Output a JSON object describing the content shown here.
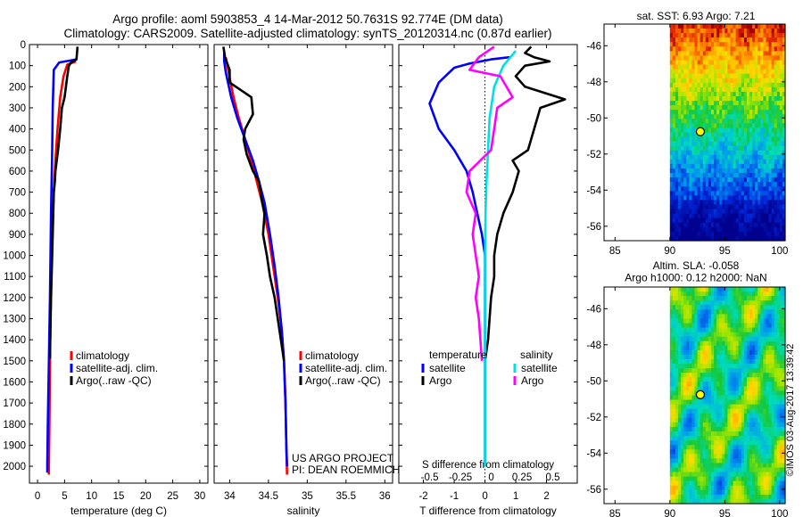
{
  "title": {
    "line1": "Argo profile: aoml 5903853_4 14-Mar-2012 50.7631S 92.774E (DM data)",
    "line2": "Climatology: CARS2009. Satellite-adjusted climatology: synTS_20120314.nc (0.87d earlier)"
  },
  "colors": {
    "climatology": "#ff0000",
    "satellite": "#0000ff",
    "argo": "#000000",
    "argo_salinity": "#ff00ff",
    "satellite_salinity": "#00e0e0"
  },
  "chart_data": [
    {
      "type": "line",
      "name": "temperature",
      "xlabel": "temperature (deg C)",
      "xlim": [
        -1.5,
        31.5
      ],
      "ylim": [
        2080,
        0
      ],
      "x_ticks": [
        0,
        5,
        10,
        15,
        20,
        25,
        30
      ],
      "y_ticks": [
        0,
        100,
        200,
        300,
        400,
        500,
        600,
        700,
        800,
        900,
        1000,
        1100,
        1200,
        1300,
        1400,
        1500,
        1600,
        1700,
        1800,
        1900,
        2000
      ],
      "legend": [
        "climatology",
        "satellite-adj. clim.",
        "Argo(..raw -QC)"
      ],
      "series": [
        {
          "name": "climatology",
          "points": [
            [
              7.1,
              80
            ],
            [
              5.5,
              95
            ],
            [
              4.8,
              150
            ],
            [
              4.2,
              250
            ],
            [
              3.7,
              400
            ],
            [
              3.3,
              550
            ],
            [
              3.0,
              700
            ],
            [
              2.8,
              850
            ],
            [
              2.6,
              1000
            ],
            [
              2.45,
              1200
            ],
            [
              2.3,
              1500
            ],
            [
              2.2,
              1800
            ],
            [
              2.1,
              2000
            ],
            [
              2.1,
              2040
            ]
          ]
        },
        {
          "name": "satellite-adj. clim.",
          "points": [
            [
              7.2,
              70
            ],
            [
              4.0,
              85
            ],
            [
              3.0,
              120
            ],
            [
              2.8,
              300
            ],
            [
              2.7,
              500
            ],
            [
              2.5,
              800
            ],
            [
              2.3,
              1200
            ],
            [
              2.1,
              1500
            ],
            [
              1.9,
              1800
            ],
            [
              1.8,
              2000
            ],
            [
              1.8,
              2030
            ]
          ]
        },
        {
          "name": "Argo(..raw -QC)",
          "points": [
            [
              7.4,
              10
            ],
            [
              7.3,
              40
            ],
            [
              7.2,
              70
            ],
            [
              6.2,
              85
            ],
            [
              5.8,
              100
            ],
            [
              5.5,
              150
            ],
            [
              5.0,
              250
            ],
            [
              4.5,
              300
            ],
            [
              4.2,
              400
            ],
            [
              3.8,
              500
            ],
            [
              3.3,
              600
            ],
            [
              3.2,
              650
            ],
            [
              3.0,
              700
            ],
            [
              2.9,
              800
            ],
            [
              2.8,
              900
            ],
            [
              2.7,
              1000
            ],
            [
              2.5,
              1200
            ],
            [
              2.35,
              1400
            ],
            [
              2.3,
              1490
            ]
          ]
        }
      ]
    },
    {
      "type": "line",
      "name": "salinity",
      "xlabel": "salinity",
      "xlim": [
        33.8,
        36.1
      ],
      "ylim": [
        2080,
        0
      ],
      "x_ticks": [
        34,
        34.5,
        35,
        35.5,
        36
      ],
      "x_ticklabels": [
        "34",
        "34.5",
        "35",
        "35.5",
        "36"
      ],
      "legend": [
        "climatology",
        "satellite-adj. clim.",
        "Argo(..raw -QC)"
      ],
      "annotation": [
        "US ARGO PROJECT",
        "PI: DEAN ROEMMICH"
      ],
      "series": [
        {
          "name": "climatology",
          "points": [
            [
              33.95,
              60
            ],
            [
              33.98,
              120
            ],
            [
              34.05,
              250
            ],
            [
              34.12,
              350
            ],
            [
              34.2,
              450
            ],
            [
              34.28,
              550
            ],
            [
              34.35,
              650
            ],
            [
              34.42,
              750
            ],
            [
              34.5,
              900
            ],
            [
              34.56,
              1050
            ],
            [
              34.62,
              1200
            ],
            [
              34.67,
              1350
            ],
            [
              34.7,
              1500
            ],
            [
              34.72,
              1700
            ],
            [
              34.73,
              1900
            ],
            [
              34.74,
              2040
            ]
          ]
        },
        {
          "name": "satellite-adj. clim.",
          "points": [
            [
              33.93,
              40
            ],
            [
              33.93,
              80
            ],
            [
              33.95,
              130
            ],
            [
              34.02,
              250
            ],
            [
              34.1,
              350
            ],
            [
              34.2,
              450
            ],
            [
              34.3,
              550
            ],
            [
              34.38,
              650
            ],
            [
              34.45,
              750
            ],
            [
              34.52,
              900
            ],
            [
              34.58,
              1050
            ],
            [
              34.63,
              1200
            ],
            [
              34.67,
              1350
            ],
            [
              34.7,
              1500
            ],
            [
              34.72,
              1700
            ],
            [
              34.73,
              1900
            ],
            [
              34.74,
              2000
            ]
          ]
        },
        {
          "name": "Argo(..raw -QC)",
          "points": [
            [
              33.92,
              10
            ],
            [
              33.94,
              60
            ],
            [
              34.0,
              120
            ],
            [
              34.0,
              180
            ],
            [
              34.28,
              250
            ],
            [
              34.3,
              330
            ],
            [
              34.2,
              400
            ],
            [
              34.18,
              450
            ],
            [
              34.22,
              520
            ],
            [
              34.3,
              600
            ],
            [
              34.38,
              650
            ],
            [
              34.42,
              750
            ],
            [
              34.45,
              800
            ],
            [
              34.43,
              900
            ],
            [
              34.48,
              1000
            ],
            [
              34.52,
              1100
            ],
            [
              34.58,
              1200
            ],
            [
              34.62,
              1300
            ],
            [
              34.66,
              1400
            ],
            [
              34.7,
              1500
            ]
          ]
        }
      ]
    },
    {
      "type": "line",
      "name": "difference",
      "xlabel": "T difference from climatology",
      "xlabel_top": "S difference from climatology",
      "xlim": [
        -2.8,
        3.0
      ],
      "ylim": [
        2080,
        0
      ],
      "x_ticks": [
        -2,
        -1,
        0,
        1,
        2
      ],
      "x_top_ticklabels": [
        "-0.5",
        "-0.25",
        "0",
        "0.25",
        "0.5"
      ],
      "legend_temperature_heading": "temperature",
      "legend_salinity_heading": "salinity",
      "legend": [
        "satellite",
        "Argo",
        "satellite",
        "Argo"
      ],
      "series": [
        {
          "name": "satellite",
          "points": [
            [
              0.8,
              60
            ],
            [
              0.2,
              70
            ],
            [
              -0.5,
              90
            ],
            [
              -1.0,
              110
            ],
            [
              -1.5,
              180
            ],
            [
              -1.8,
              280
            ],
            [
              -1.5,
              400
            ],
            [
              -1.0,
              500
            ],
            [
              -0.6,
              600
            ],
            [
              -0.4,
              700
            ],
            [
              -0.25,
              800
            ],
            [
              -0.1,
              900
            ],
            [
              0,
              1000
            ],
            [
              0,
              1500
            ],
            [
              0,
              2000
            ]
          ]
        },
        {
          "name": "Argo",
          "points": [
            [
              1.5,
              10
            ],
            [
              1.3,
              40
            ],
            [
              1.6,
              60
            ],
            [
              2.1,
              80
            ],
            [
              1.3,
              100
            ],
            [
              1.0,
              150
            ],
            [
              1.3,
              200
            ],
            [
              2.6,
              260
            ],
            [
              1.8,
              300
            ],
            [
              1.6,
              400
            ],
            [
              1.4,
              500
            ],
            [
              0.9,
              550
            ],
            [
              1.1,
              600
            ],
            [
              0.9,
              700
            ],
            [
              0.6,
              800
            ],
            [
              0.4,
              900
            ],
            [
              0.3,
              1000
            ],
            [
              0.3,
              1100
            ],
            [
              0.2,
              1200
            ],
            [
              0.15,
              1300
            ],
            [
              0.1,
              1400
            ],
            [
              0,
              1500
            ]
          ]
        },
        {
          "name": "satellite",
          "points": [
            [
              1.0,
              30
            ],
            [
              0.6,
              100
            ],
            [
              0.3,
              200
            ],
            [
              0.15,
              350
            ],
            [
              0.1,
              500
            ],
            [
              0.05,
              650
            ],
            [
              0.02,
              800
            ],
            [
              0,
              1000
            ],
            [
              0,
              1500
            ],
            [
              0,
              2000
            ]
          ]
        },
        {
          "name": "Argo",
          "points": [
            [
              0.3,
              10
            ],
            [
              -0.2,
              60
            ],
            [
              -0.5,
              120
            ],
            [
              0.5,
              150
            ],
            [
              0.9,
              250
            ],
            [
              0.4,
              300
            ],
            [
              0.3,
              400
            ],
            [
              0.2,
              500
            ],
            [
              -0.5,
              600
            ],
            [
              -0.6,
              700
            ],
            [
              -0.3,
              800
            ],
            [
              -0.4,
              900
            ],
            [
              -0.3,
              1000
            ],
            [
              -0.2,
              1100
            ],
            [
              -0.3,
              1200
            ],
            [
              -0.2,
              1300
            ],
            [
              -0.15,
              1400
            ],
            [
              -0.1,
              1500
            ]
          ]
        }
      ]
    },
    {
      "type": "heatmap",
      "name": "sst_map",
      "title": "sat. SST: 6.93 Argo: 7.21",
      "xlim": [
        84,
        100.5
      ],
      "ylim": [
        -56.8,
        -44.8
      ],
      "x_ticks": [
        85,
        90,
        95,
        100
      ],
      "y_ticks": [
        -56,
        -54,
        -52,
        -50,
        -48,
        -46
      ],
      "marker": {
        "lon": 92.774,
        "lat": -50.7631
      }
    },
    {
      "type": "heatmap",
      "name": "sla_map",
      "title": [
        "Altim. SLA: -0.058",
        "Argo h1000: 0.12 h2000: NaN"
      ],
      "xlim": [
        84,
        100.5
      ],
      "ylim": [
        -56.8,
        -44.8
      ],
      "x_ticks": [
        85,
        90,
        95,
        100
      ],
      "y_ticks": [
        -56,
        -54,
        -52,
        -50,
        -48,
        -46
      ],
      "marker": {
        "lon": 92.774,
        "lat": -50.7631
      }
    }
  ],
  "credit": "©IMOS 03-Aug-2017 13:39:42"
}
